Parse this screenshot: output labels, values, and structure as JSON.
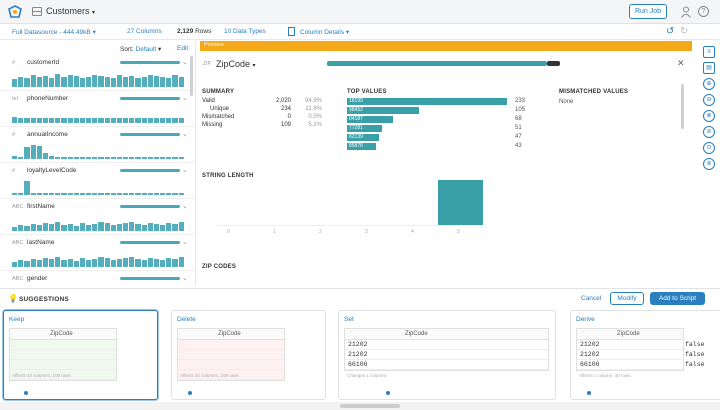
{
  "topbar": {
    "dataset_name": "Customers",
    "run_job_label": "Run Job"
  },
  "subbar": {
    "datasource": "Full Datasource - 444.49kB",
    "columns": "27 Columns",
    "rows_count": "2,129",
    "rows_word": "Rows",
    "types": "10 Data Types",
    "column_details": "Column Details"
  },
  "left": {
    "sort_label": "Sort:",
    "sort_value": "Default",
    "edit_label": "Edit",
    "columns": [
      {
        "name": "customerId",
        "icon": "#"
      },
      {
        "name": "phoneNumber",
        "icon": "tel"
      },
      {
        "name": "annualIncome",
        "icon": "#"
      },
      {
        "name": "loyaltyLevelCode",
        "icon": "#"
      },
      {
        "name": "firstName",
        "icon": "ABC"
      },
      {
        "name": "lastName",
        "icon": "ABC"
      },
      {
        "name": "gender",
        "icon": "ABC"
      }
    ]
  },
  "preview_label": "Preview",
  "detail": {
    "type_tag": "ZIP",
    "column_name": "ZipCode",
    "summary_title": "SUMMARY",
    "summary": [
      {
        "label": "Valid",
        "value": "2,020",
        "pct": "94.9%"
      },
      {
        "label": "Unique",
        "value": "234",
        "pct": "11.6%"
      },
      {
        "label": "Mismatched",
        "value": "0",
        "pct": "0.0%"
      },
      {
        "label": "Missing",
        "value": "109",
        "pct": "5.1%"
      }
    ],
    "top_values_title": "TOP VALUES",
    "top_values": [
      {
        "label": "18199",
        "count": "233",
        "fraction": 1.0
      },
      {
        "label": "98452",
        "count": "105",
        "fraction": 0.45
      },
      {
        "label": "04187",
        "count": "68",
        "fraction": 0.29
      },
      {
        "label": "77281",
        "count": "51",
        "fraction": 0.22
      },
      {
        "label": "82139",
        "count": "47",
        "fraction": 0.2
      },
      {
        "label": "85876",
        "count": "43",
        "fraction": 0.18
      }
    ],
    "mismatched_title": "MISMATCHED VALUES",
    "mismatched_value": "None",
    "string_length_title": "STRING LENGTH",
    "string_ticks": [
      "0",
      "1",
      "2",
      "3",
      "4",
      "5"
    ],
    "zip_codes_title": "ZIP CODES"
  },
  "suggestions": {
    "title": "SUGGESTIONS",
    "cancel": "Cancel",
    "modify": "Modify",
    "add_to_script": "Add to Script",
    "cards": [
      {
        "title": "Keep",
        "col": "ZipCode",
        "rows": [],
        "foot": "Affects 44 columns, 109 rows"
      },
      {
        "title": "Delete",
        "col": "ZipCode",
        "rows": [],
        "foot": "Affects 44 columns, 109 rows"
      },
      {
        "title": "Set",
        "col": "ZipCode",
        "rows": [
          "21202",
          "21202",
          "66106"
        ],
        "foot": "Changes 1 columns"
      },
      {
        "title": "Derive",
        "col": "ZipCode",
        "rows": [
          "21202",
          "21202",
          "66106"
        ],
        "extra": [
          "false",
          "false",
          "false"
        ],
        "foot": "Affects 1 column, 40 rows"
      }
    ]
  },
  "colors": {
    "accent": "#2a7fc1",
    "teal": "#3aa0a8",
    "preview_orange": "#f6a81b"
  }
}
